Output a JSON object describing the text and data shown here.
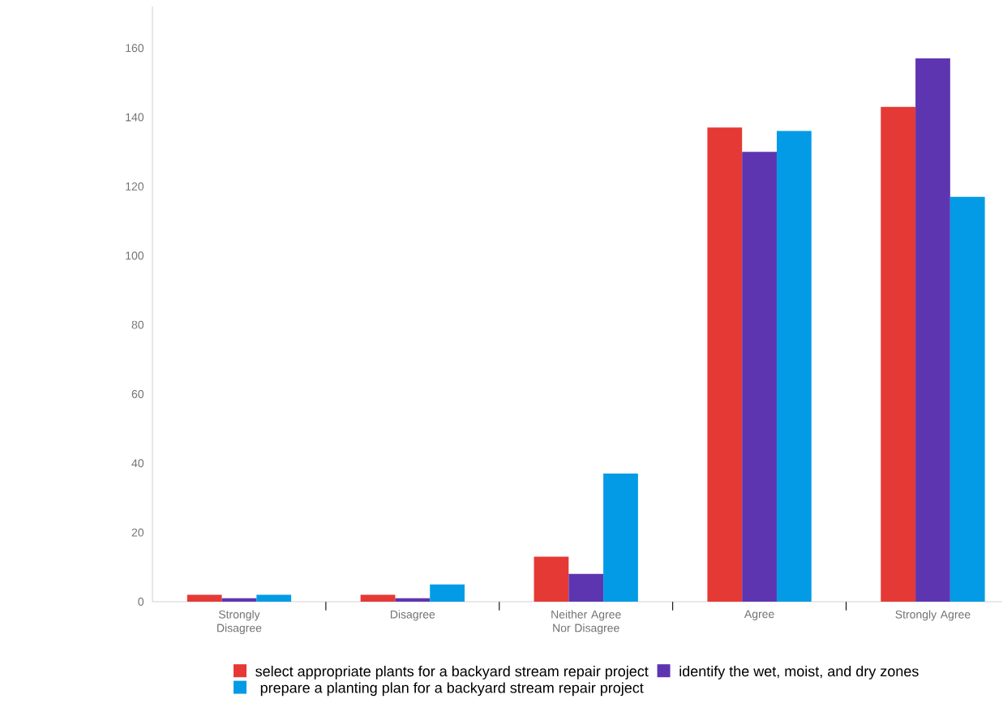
{
  "chart_data": {
    "type": "bar",
    "categories": [
      "Strongly Disagree",
      "Disagree",
      "Neither Agree Nor Disagree",
      "Agree",
      "Strongly Agree"
    ],
    "series": [
      {
        "name": "select appropriate plants for a backyard stream repair project",
        "color": "#e53935",
        "values": [
          2,
          2,
          13,
          137,
          143
        ]
      },
      {
        "name": "identify the wet, moist, and dry zones",
        "color": "#5e35b1",
        "values": [
          1,
          1,
          8,
          130,
          157
        ]
      },
      {
        "name": "prepare a planting plan for a backyard stream repair project",
        "color": "#039be5",
        "values": [
          2,
          5,
          37,
          136,
          117
        ]
      }
    ],
    "ylim": [
      0,
      172
    ],
    "yticks": [
      0,
      20,
      40,
      60,
      80,
      100,
      120,
      140,
      160
    ],
    "grid": false,
    "legend": "bottom"
  }
}
